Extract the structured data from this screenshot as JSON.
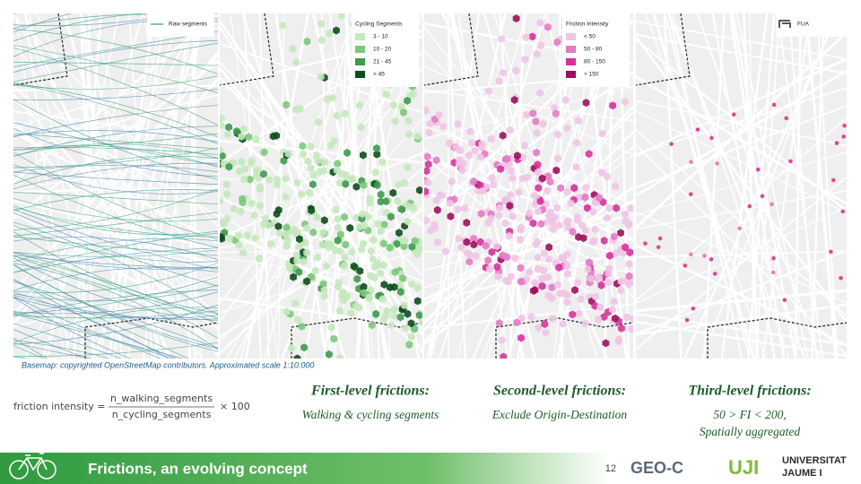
{
  "maps": [
    {
      "legend": {
        "items": [
          "Raw segments"
        ]
      }
    },
    {
      "legend": {
        "title": "Cycling Segments",
        "items": [
          "3 - 10",
          "10 - 20",
          "21 - 45",
          "> 45"
        ]
      }
    },
    {
      "legend": {
        "title": "Friction Intensity",
        "items": [
          "< 50",
          "50 - 80",
          "80 - 150",
          "> 150"
        ]
      }
    },
    {
      "legend": {
        "items": [
          "FUA"
        ]
      }
    }
  ],
  "basemap_note": "Basemap: copyrighted OpenStreetMap contributors. Approximated scale 1:10.000",
  "formula": {
    "lhs": "friction intensity =",
    "numerator": "n_walking_segments",
    "denominator": "n_cycling_segments",
    "factor": "× 100"
  },
  "levels": [
    {
      "title": "First-level frictions:",
      "description": [
        "Walking & cycling segments"
      ]
    },
    {
      "title": "Second-level frictions:",
      "description": [
        "Exclude Origin-Destination"
      ]
    },
    {
      "title": "Third-level frictions:",
      "description": [
        "50 > FI < 200,",
        "Spatially aggregated"
      ]
    }
  ],
  "footer": {
    "title": "Frictions, an evolving concept",
    "page": 12,
    "logos": [
      "GEO-C",
      "UJI",
      "UNIVERSITAT",
      "JAUME I"
    ]
  }
}
